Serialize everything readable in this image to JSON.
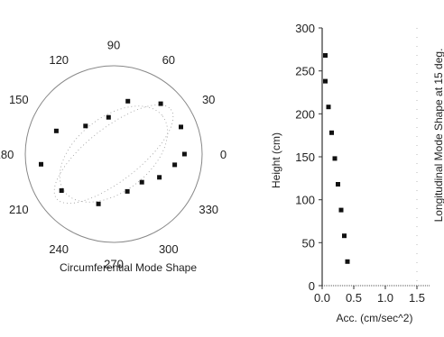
{
  "chart_data": [
    {
      "type": "scatter",
      "coordinate_system": "polar",
      "title": "Circumferential Mode Shape",
      "angle_tick_labels": [
        "0",
        "30",
        "60",
        "90",
        "120",
        "150",
        "180",
        "210",
        "240",
        "270",
        "300",
        "330"
      ],
      "angle_unit": "degrees",
      "reference_circle": true,
      "points": [
        {
          "angle": 0,
          "r": 0.8
        },
        {
          "angle": 22,
          "r": 0.82
        },
        {
          "angle": 47,
          "r": 0.78
        },
        {
          "angle": 75,
          "r": 0.62
        },
        {
          "angle": 98,
          "r": 0.42
        },
        {
          "angle": 135,
          "r": 0.45
        },
        {
          "angle": 158,
          "r": 0.7
        },
        {
          "angle": 188,
          "r": 0.83
        },
        {
          "angle": 215,
          "r": 0.72
        },
        {
          "angle": 253,
          "r": 0.59
        },
        {
          "angle": 290,
          "r": 0.45
        },
        {
          "angle": 315,
          "r": 0.45
        },
        {
          "angle": 333,
          "r": 0.58
        },
        {
          "angle": 350,
          "r": 0.7
        }
      ]
    },
    {
      "type": "scatter",
      "xlabel": "Acc. (cm/sec^2)",
      "ylabel": "Height (cm)",
      "right_label": "Longitudinal Mode Shape at 15 deg.",
      "xlim": [
        0,
        1.5
      ],
      "ylim": [
        0,
        300
      ],
      "xticks": [
        "0.0",
        "0.5",
        "1.0",
        "1.5"
      ],
      "yticks": [
        "0",
        "50",
        "100",
        "150",
        "200",
        "250",
        "300"
      ],
      "points": [
        {
          "x": 0.05,
          "y": 268
        },
        {
          "x": 0.05,
          "y": 238
        },
        {
          "x": 0.1,
          "y": 208
        },
        {
          "x": 0.15,
          "y": 178
        },
        {
          "x": 0.2,
          "y": 148
        },
        {
          "x": 0.25,
          "y": 118
        },
        {
          "x": 0.3,
          "y": 88
        },
        {
          "x": 0.35,
          "y": 58
        },
        {
          "x": 0.4,
          "y": 28
        }
      ]
    }
  ]
}
